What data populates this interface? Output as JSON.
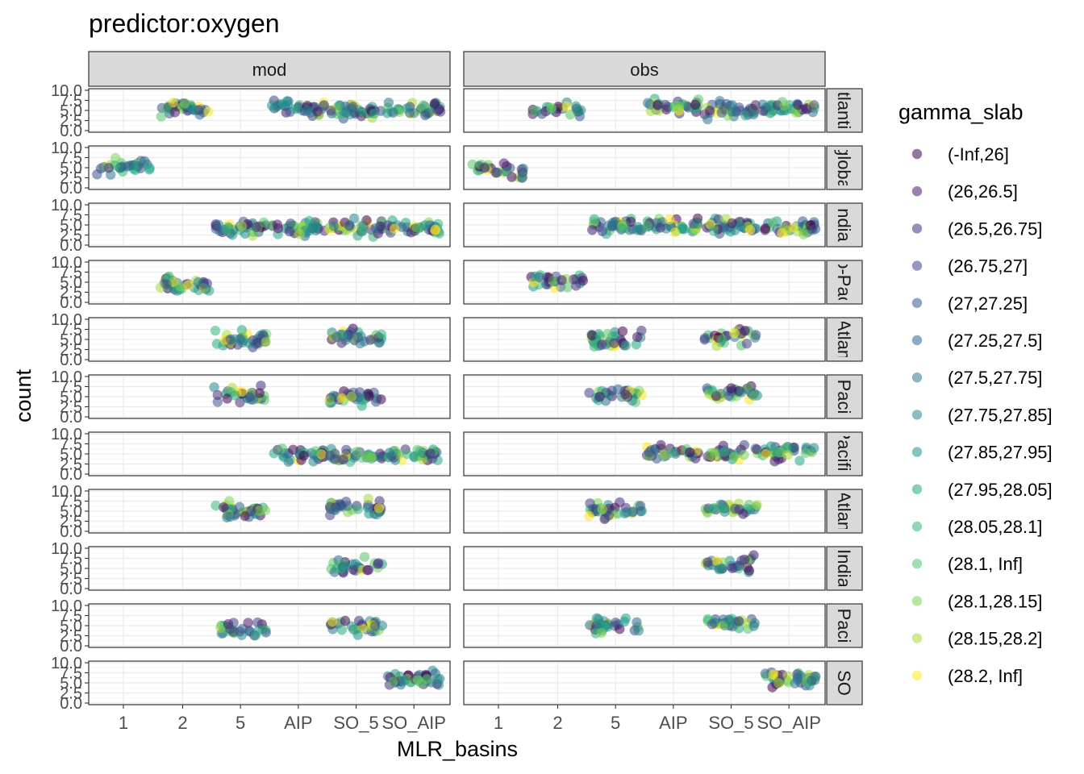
{
  "chart_data": {
    "type": "scatter",
    "title": "predictor:oxygen",
    "xlabel": "MLR_basins",
    "ylabel": "count",
    "x_categories": [
      "1",
      "2",
      "5",
      "AIP",
      "SO_5",
      "SO_AIP"
    ],
    "y_ticks": [
      "0.0",
      "2.5",
      "5.0",
      "7.5",
      "10.0"
    ],
    "ylim": [
      0,
      10
    ],
    "grid": true,
    "facet_columns": [
      "mod",
      "obs"
    ],
    "facet_rows": [
      "Atlantic",
      "global",
      "Indian",
      "Indo-Pacific",
      "N_Atlantic",
      "N_Pacific",
      "Pacific",
      "S_Atlantic",
      "S_Indian",
      "S_Pacific",
      "SO"
    ],
    "facet_row_strip_text": [
      "tlanti",
      "globa",
      "ndia",
      "o-Pac",
      "Atlan",
      "Paci",
      "Pacific",
      "Atlan",
      "India",
      "Paci",
      "SO"
    ],
    "legend": {
      "title": "gamma_slab",
      "position": "right",
      "levels": [
        "(-Inf,26]",
        "(26,26.5]",
        "(26.5,26.75]",
        "(26.75,27]",
        "(27,27.25]",
        "(27.25,27.5]",
        "(27.5,27.75]",
        "(27.75,27.85]",
        "(27.85,27.95]",
        "(27.95,28.05]",
        "(28.05,28.1]",
        "(28.1, Inf]",
        "(28.1,28.15]",
        "(28.15,28.2]",
        "(28.2, Inf]"
      ],
      "colors": [
        "#440154",
        "#481A6C",
        "#472F7D",
        "#414487",
        "#39568C",
        "#31688E",
        "#2A788E",
        "#23888E",
        "#1F988B",
        "#22A884",
        "#35B779",
        "#54C568",
        "#7AD151",
        "#A5DB36",
        "#FDE725"
      ]
    },
    "point_alpha": 0.55,
    "panels": [
      {
        "row": "Atlantic",
        "column": "mod",
        "clusters": [
          {
            "x": "2",
            "y": 5.5,
            "n": 36
          },
          {
            "x": "AIP",
            "y": 5.5,
            "n": 36
          },
          {
            "x": "SO_5",
            "y": 5.0,
            "n": 36
          },
          {
            "x": "SO_AIP",
            "y": 5.2,
            "n": 36
          }
        ]
      },
      {
        "row": "Atlantic",
        "column": "obs",
        "clusters": [
          {
            "x": "2",
            "y": 5.6,
            "n": 24
          },
          {
            "x": "AIP",
            "y": 6.0,
            "n": 32
          },
          {
            "x": "SO_5",
            "y": 5.0,
            "n": 36
          },
          {
            "x": "SO_AIP",
            "y": 5.8,
            "n": 36
          }
        ]
      },
      {
        "row": "global",
        "column": "mod",
        "clusters": [
          {
            "x": "1",
            "y": 5.2,
            "n": 32
          }
        ]
      },
      {
        "row": "global",
        "column": "obs",
        "clusters": [
          {
            "x": "1",
            "y": 4.5,
            "n": 28
          }
        ]
      },
      {
        "row": "Indian",
        "column": "mod",
        "clusters": [
          {
            "x": "5",
            "y": 4.2,
            "n": 36
          },
          {
            "x": "AIP",
            "y": 4.4,
            "n": 36
          },
          {
            "x": "SO_5",
            "y": 4.3,
            "n": 36
          },
          {
            "x": "SO_AIP",
            "y": 4.2,
            "n": 36
          }
        ]
      },
      {
        "row": "Indian",
        "column": "obs",
        "clusters": [
          {
            "x": "5",
            "y": 4.5,
            "n": 36
          },
          {
            "x": "AIP",
            "y": 4.6,
            "n": 36
          },
          {
            "x": "SO_5",
            "y": 4.6,
            "n": 36
          },
          {
            "x": "SO_AIP",
            "y": 4.6,
            "n": 36
          }
        ]
      },
      {
        "row": "Indo-Pacific",
        "column": "mod",
        "clusters": [
          {
            "x": "2",
            "y": 4.5,
            "n": 36
          }
        ]
      },
      {
        "row": "Indo-Pacific",
        "column": "obs",
        "clusters": [
          {
            "x": "2",
            "y": 5.0,
            "n": 30
          }
        ]
      },
      {
        "row": "N_Atlantic",
        "column": "mod",
        "clusters": [
          {
            "x": "5",
            "y": 5.0,
            "n": 36
          },
          {
            "x": "SO_5",
            "y": 5.5,
            "n": 32
          }
        ]
      },
      {
        "row": "N_Atlantic",
        "column": "obs",
        "clusters": [
          {
            "x": "5",
            "y": 5.0,
            "n": 36
          },
          {
            "x": "SO_5",
            "y": 5.5,
            "n": 32
          }
        ]
      },
      {
        "row": "N_Pacific",
        "column": "mod",
        "clusters": [
          {
            "x": "5",
            "y": 5.5,
            "n": 32
          },
          {
            "x": "SO_5",
            "y": 5.0,
            "n": 32
          }
        ]
      },
      {
        "row": "N_Pacific",
        "column": "obs",
        "clusters": [
          {
            "x": "5",
            "y": 5.4,
            "n": 28
          },
          {
            "x": "SO_5",
            "y": 6.0,
            "n": 32
          }
        ]
      },
      {
        "row": "Pacific",
        "column": "mod",
        "clusters": [
          {
            "x": "AIP",
            "y": 4.8,
            "n": 36
          },
          {
            "x": "SO_5",
            "y": 4.6,
            "n": 36
          },
          {
            "x": "SO_AIP",
            "y": 4.8,
            "n": 36
          }
        ]
      },
      {
        "row": "Pacific",
        "column": "obs",
        "clusters": [
          {
            "x": "AIP",
            "y": 5.2,
            "n": 32
          },
          {
            "x": "SO_5",
            "y": 5.4,
            "n": 32
          },
          {
            "x": "SO_AIP",
            "y": 5.2,
            "n": 36
          }
        ]
      },
      {
        "row": "S_Atlantic",
        "column": "mod",
        "clusters": [
          {
            "x": "5",
            "y": 5.0,
            "n": 36
          },
          {
            "x": "SO_5",
            "y": 6.0,
            "n": 36
          }
        ]
      },
      {
        "row": "S_Atlantic",
        "column": "obs",
        "clusters": [
          {
            "x": "5",
            "y": 5.0,
            "n": 36
          },
          {
            "x": "SO_5",
            "y": 5.5,
            "n": 30
          }
        ]
      },
      {
        "row": "S_Indian",
        "column": "mod",
        "clusters": [
          {
            "x": "SO_5",
            "y": 5.8,
            "n": 32
          }
        ]
      },
      {
        "row": "S_Indian",
        "column": "obs",
        "clusters": [
          {
            "x": "SO_5",
            "y": 6.0,
            "n": 30
          }
        ]
      },
      {
        "row": "S_Pacific",
        "column": "mod",
        "clusters": [
          {
            "x": "5",
            "y": 4.5,
            "n": 30
          },
          {
            "x": "SO_5",
            "y": 4.8,
            "n": 32
          }
        ]
      },
      {
        "row": "S_Pacific",
        "column": "obs",
        "clusters": [
          {
            "x": "5",
            "y": 5.0,
            "n": 30
          },
          {
            "x": "SO_5",
            "y": 5.6,
            "n": 32
          }
        ]
      },
      {
        "row": "SO",
        "column": "mod",
        "clusters": [
          {
            "x": "SO_AIP",
            "y": 5.5,
            "n": 40
          }
        ]
      },
      {
        "row": "SO",
        "column": "obs",
        "clusters": [
          {
            "x": "SO_AIP",
            "y": 5.8,
            "n": 40
          }
        ]
      }
    ]
  }
}
